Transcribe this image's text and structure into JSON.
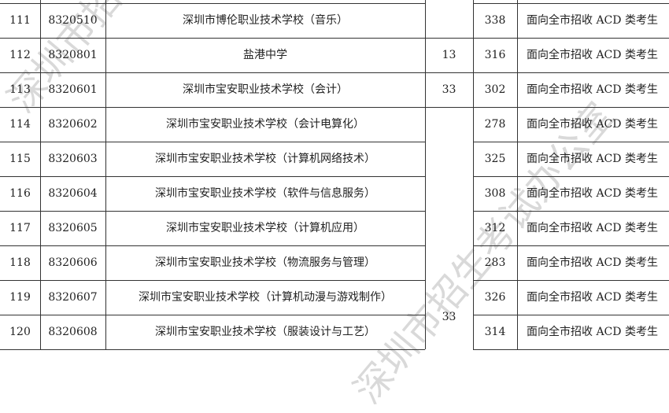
{
  "watermark": "深圳市招生考试办公室",
  "rows": [
    {
      "no": "111",
      "code": "8320510",
      "school": "深圳市博伦职业技术学校（音乐）",
      "plan": "",
      "score": "338",
      "note": "面向全市招收 ACD 类考生"
    },
    {
      "no": "112",
      "code": "8320801",
      "school": "盐港中学",
      "plan": "13",
      "score": "316",
      "note": "面向全市招收 ACD 类考生"
    },
    {
      "no": "113",
      "code": "8320601",
      "school": "深圳市宝安职业技术学校（会计）",
      "plan": "33",
      "score": "302",
      "note": "面向全市招收 ACD 类考生"
    },
    {
      "no": "114",
      "code": "8320602",
      "school": "深圳市宝安职业技术学校（会计电算化）",
      "plan": "",
      "score": "278",
      "note": "面向全市招收 ACD 类考生"
    },
    {
      "no": "115",
      "code": "8320603",
      "school": "深圳市宝安职业技术学校（计算机网络技术）",
      "plan": "",
      "score": "325",
      "note": "面向全市招收 ACD 类考生"
    },
    {
      "no": "116",
      "code": "8320604",
      "school": "深圳市宝安职业技术学校（软件与信息服务）",
      "plan": "",
      "score": "308",
      "note": "面向全市招收 ACD 类考生"
    },
    {
      "no": "117",
      "code": "8320605",
      "school": "深圳市宝安职业技术学校（计算机应用）",
      "plan": "",
      "score": "312",
      "note": "面向全市招收 ACD 类考生"
    },
    {
      "no": "118",
      "code": "8320606",
      "school": "深圳市宝安职业技术学校（物流服务与管理）",
      "plan": "",
      "score": "283",
      "note": "面向全市招收 ACD 类考生"
    },
    {
      "no": "119",
      "code": "8320607",
      "school": "深圳市宝安职业技术学校（计算机动漫与游戏制作）",
      "plan": "",
      "score": "326",
      "note": "面向全市招收 ACD 类考生"
    },
    {
      "no": "120",
      "code": "8320608",
      "school": "深圳市宝安职业技术学校（服装设计与工艺）",
      "plan": "",
      "score": "314",
      "note": "面向全市招收 ACD 类考生"
    }
  ],
  "merged_plan": "33"
}
